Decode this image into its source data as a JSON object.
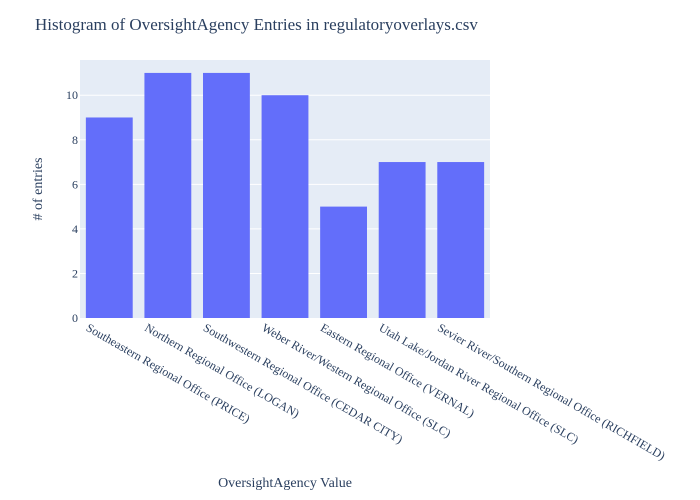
{
  "chart_data": {
    "type": "bar",
    "title": "Histogram of OversightAgency Entries in regulatoryoverlays.csv",
    "xlabel": "OversightAgency Value",
    "ylabel": "# of entries",
    "categories": [
      "Southeastern Regional Office (PRICE)",
      "Northern Regional Office (LOGAN)",
      "Southwestern Regional Office (CEDAR CITY)",
      "Weber River/Western Regional Office (SLC)",
      "Eastern Regional Office (VERNAL)",
      "Utah Lake/Jordan River Regional Office (SLC)",
      "Sevier River/Southern Regional Office (RICHFIELD)"
    ],
    "values": [
      9,
      11,
      11,
      10,
      5,
      7,
      7
    ],
    "ylim": [
      0,
      11.58
    ],
    "yticks": [
      0,
      2,
      4,
      6,
      8,
      10
    ],
    "grid": true,
    "legend": "none",
    "colors": {
      "bar": "#636efa",
      "plot_background": "#e5ecf6",
      "grid": "#ffffff",
      "text": "#2a3f5f"
    }
  }
}
